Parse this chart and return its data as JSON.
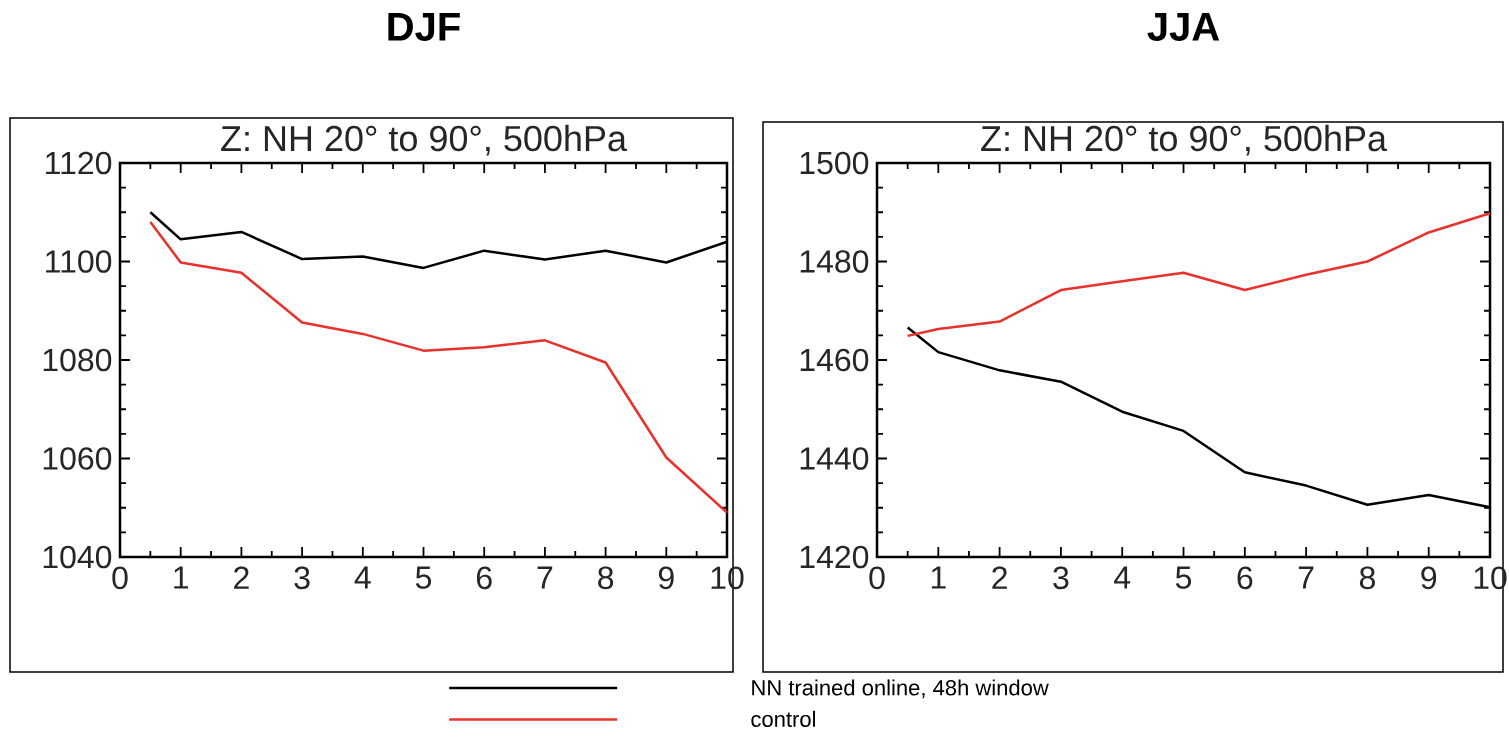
{
  "chart_data": [
    {
      "type": "line",
      "title": "DJF",
      "subtitle": "Z: NH 20° to 90°, 500hPa",
      "x": [
        0.5,
        1,
        2,
        3,
        4,
        5,
        6,
        7,
        8,
        9,
        10
      ],
      "series": [
        {
          "name": "NN trained online, 48h window",
          "color": "#000000",
          "values": [
            1110,
            1104.5,
            1106,
            1100.5,
            1101,
            1098.7,
            1102.2,
            1100.4,
            1102.2,
            1099.8,
            1104
          ]
        },
        {
          "name": "control",
          "color": "#e8312b",
          "values": [
            1108,
            1099.8,
            1097.7,
            1087.6,
            1085.3,
            1081.9,
            1082.6,
            1084,
            1079.5,
            1060.2,
            1049
          ]
        }
      ],
      "xlim": [
        0,
        10
      ],
      "xticks": [
        0,
        1,
        2,
        3,
        4,
        5,
        6,
        7,
        8,
        9,
        10
      ],
      "ylim": [
        1040,
        1120
      ],
      "yticks": [
        1040,
        1060,
        1080,
        1100,
        1120
      ],
      "legend": "bottom",
      "grid": false
    },
    {
      "type": "line",
      "title": "JJA",
      "subtitle": "Z: NH 20° to 90°, 500hPa",
      "x": [
        0.5,
        1,
        2,
        3,
        4,
        5,
        6,
        7,
        8,
        9,
        10
      ],
      "series": [
        {
          "color": "#000000",
          "values": [
            1466.6,
            1461.6,
            1457.9,
            1455.6,
            1449.5,
            1445.6,
            1437.2,
            1434.5,
            1430.6,
            1432.6,
            1430.1
          ]
        },
        {
          "color": "#e8312b",
          "values": [
            1464.9,
            1466.3,
            1467.8,
            1474.2,
            1476,
            1477.7,
            1474.2,
            1477.3,
            1480,
            1485.9,
            1489.8
          ]
        }
      ],
      "xlim": [
        0,
        10
      ],
      "xticks": [
        0,
        1,
        2,
        3,
        4,
        5,
        6,
        7,
        8,
        9,
        10
      ],
      "ylim": [
        1420,
        1500
      ],
      "yticks": [
        1420,
        1440,
        1460,
        1480,
        1500
      ],
      "grid": false
    }
  ]
}
